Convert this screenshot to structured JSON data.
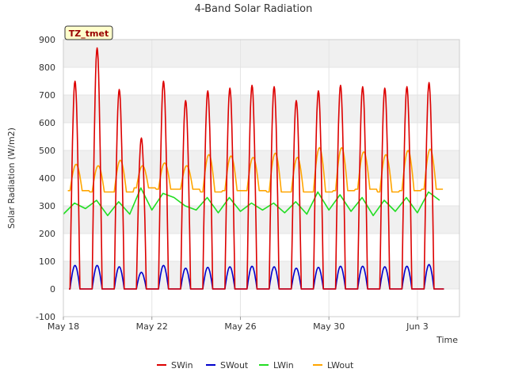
{
  "chart_data": {
    "type": "line",
    "title": "4-Band Solar Radiation",
    "xlabel": "Time",
    "ylabel": "Solar Radiation (W/m2)",
    "site_label": "TZ_tmet",
    "xlim": [
      0,
      17.9
    ],
    "ylim": [
      -100,
      900
    ],
    "yticks": [
      -100,
      0,
      100,
      200,
      300,
      400,
      500,
      600,
      700,
      800,
      900
    ],
    "xticks": [
      {
        "value": 0,
        "label": "May 18"
      },
      {
        "value": 4,
        "label": "May 22"
      },
      {
        "value": 8,
        "label": "May 26"
      },
      {
        "value": 12,
        "label": "May 30"
      },
      {
        "value": 16,
        "label": "Jun 3"
      }
    ],
    "legend_position": "bottom",
    "grid": true,
    "day_start": 0.25,
    "days": 17,
    "series": [
      {
        "name": "SWin",
        "color": "#dd0000",
        "kind": "day_peaks",
        "values": [
          750,
          870,
          720,
          545,
          750,
          680,
          715,
          725,
          735,
          730,
          680,
          715,
          735,
          730,
          725,
          730,
          745
        ]
      },
      {
        "name": "SWout",
        "color": "#0000cc",
        "kind": "day_peaks",
        "values": [
          85,
          85,
          80,
          60,
          85,
          75,
          78,
          80,
          82,
          80,
          75,
          78,
          82,
          82,
          80,
          82,
          88
        ]
      },
      {
        "name": "LWin",
        "color": "#22dd22",
        "kind": "daily_level",
        "values": [
          [
            0,
            270
          ],
          [
            0.5,
            310
          ],
          [
            1,
            290
          ],
          [
            1.5,
            320
          ],
          [
            2,
            265
          ],
          [
            2.5,
            315
          ],
          [
            3,
            270
          ],
          [
            3.5,
            365
          ],
          [
            4,
            285
          ],
          [
            4.5,
            345
          ],
          [
            5,
            330
          ],
          [
            5.5,
            300
          ],
          [
            6,
            285
          ],
          [
            6.5,
            330
          ],
          [
            7,
            275
          ],
          [
            7.5,
            330
          ],
          [
            8,
            280
          ],
          [
            8.5,
            310
          ],
          [
            9,
            285
          ],
          [
            9.5,
            310
          ],
          [
            10,
            275
          ],
          [
            10.5,
            315
          ],
          [
            11,
            270
          ],
          [
            11.5,
            350
          ],
          [
            12,
            285
          ],
          [
            12.5,
            340
          ],
          [
            13,
            280
          ],
          [
            13.5,
            330
          ],
          [
            14,
            265
          ],
          [
            14.5,
            320
          ],
          [
            15,
            280
          ],
          [
            15.5,
            330
          ],
          [
            16,
            275
          ],
          [
            16.5,
            350
          ],
          [
            17,
            320
          ]
        ]
      },
      {
        "name": "LWout",
        "color": "#ffa500",
        "kind": "day_level",
        "base": [
          355,
          350,
          350,
          365,
          360,
          360,
          350,
          355,
          355,
          350,
          350,
          350,
          355,
          360,
          350,
          355,
          360
        ],
        "values": [
          450,
          445,
          465,
          445,
          455,
          445,
          485,
          480,
          475,
          490,
          475,
          510,
          510,
          495,
          485,
          500,
          505
        ]
      }
    ]
  }
}
